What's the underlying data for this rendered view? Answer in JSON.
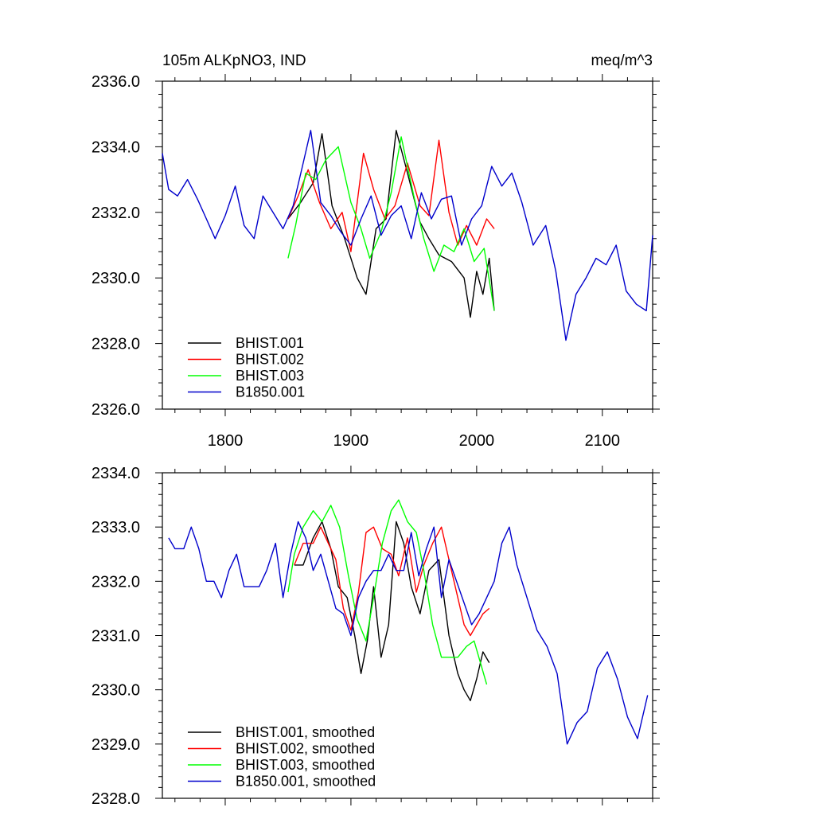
{
  "chart_data": [
    {
      "type": "line",
      "title": "105m ALKpNO3, IND",
      "units": "meq/m^3",
      "xlim": [
        1750,
        2140
      ],
      "ylim": [
        2326.0,
        2336.0
      ],
      "x_ticks": [
        1800,
        1900,
        2000,
        2100
      ],
      "x_tick_labels": [
        "1800",
        "1900",
        "2000",
        "2100"
      ],
      "y_ticks": [
        2326.0,
        2328.0,
        2330.0,
        2332.0,
        2334.0,
        2336.0
      ],
      "y_tick_labels": [
        "2326.0",
        "2328.0",
        "2330.0",
        "2332.0",
        "2334.0",
        "2336.0"
      ],
      "legend_position": "bottom-left",
      "series": [
        {
          "name": "BHIST.001",
          "color": "#000000",
          "x": [
            1850,
            1860,
            1870,
            1877,
            1885,
            1895,
            1905,
            1912,
            1920,
            1928,
            1936,
            1945,
            1955,
            1962,
            1970,
            1980,
            1990,
            1995,
            2000,
            2005,
            2010,
            2014
          ],
          "y": [
            2331.8,
            2332.3,
            2332.9,
            2334.4,
            2332.2,
            2331.2,
            2330.0,
            2329.5,
            2331.5,
            2331.8,
            2334.5,
            2333.2,
            2331.7,
            2331.2,
            2330.7,
            2330.5,
            2330.0,
            2328.8,
            2330.2,
            2329.5,
            2330.6,
            2329.0
          ]
        },
        {
          "name": "BHIST.002",
          "color": "#ff0000",
          "x": [
            1850,
            1858,
            1866,
            1875,
            1884,
            1893,
            1900,
            1910,
            1918,
            1927,
            1935,
            1945,
            1955,
            1962,
            1970,
            1978,
            1985,
            1992,
            2000,
            2008,
            2014
          ],
          "y": [
            2331.8,
            2332.5,
            2333.3,
            2332.3,
            2331.5,
            2332.0,
            2330.8,
            2333.8,
            2332.7,
            2331.8,
            2332.2,
            2333.5,
            2332.2,
            2331.9,
            2334.2,
            2332.0,
            2331.0,
            2331.6,
            2331.0,
            2331.8,
            2331.5
          ]
        },
        {
          "name": "BHIST.003",
          "color": "#00ff00",
          "x": [
            1850,
            1856,
            1864,
            1872,
            1880,
            1890,
            1900,
            1908,
            1915,
            1924,
            1932,
            1940,
            1950,
            1958,
            1966,
            1974,
            1982,
            1990,
            1998,
            2006,
            2014
          ],
          "y": [
            2330.6,
            2331.6,
            2333.2,
            2333.0,
            2333.6,
            2334.0,
            2332.3,
            2331.5,
            2330.6,
            2331.4,
            2332.6,
            2334.3,
            2332.5,
            2331.2,
            2330.2,
            2331.0,
            2330.8,
            2331.5,
            2330.5,
            2330.9,
            2329.0
          ]
        },
        {
          "name": "B1850.001",
          "color": "#0000cc",
          "x": [
            1750,
            1755,
            1762,
            1770,
            1778,
            1785,
            1792,
            1800,
            1808,
            1815,
            1823,
            1830,
            1838,
            1846,
            1854,
            1862,
            1868,
            1876,
            1884,
            1892,
            1900,
            1908,
            1916,
            1924,
            1932,
            1940,
            1948,
            1956,
            1964,
            1972,
            1980,
            1988,
            1996,
            2004,
            2012,
            2020,
            2028,
            2036,
            2045,
            2055,
            2063,
            2071,
            2079,
            2087,
            2095,
            2103,
            2111,
            2119,
            2127,
            2135,
            2140
          ],
          "y": [
            2333.8,
            2332.7,
            2332.5,
            2333.0,
            2332.4,
            2331.8,
            2331.2,
            2331.9,
            2332.8,
            2331.6,
            2331.2,
            2332.5,
            2332.0,
            2331.5,
            2332.2,
            2333.5,
            2334.5,
            2332.3,
            2331.9,
            2331.4,
            2331.0,
            2331.8,
            2332.5,
            2331.3,
            2331.9,
            2332.2,
            2331.2,
            2332.6,
            2331.8,
            2332.4,
            2332.5,
            2331.0,
            2331.8,
            2332.2,
            2333.4,
            2332.8,
            2333.2,
            2332.3,
            2331.0,
            2331.6,
            2330.2,
            2328.1,
            2329.5,
            2330.0,
            2330.6,
            2330.4,
            2331.0,
            2329.6,
            2329.2,
            2329.0,
            2331.3
          ]
        }
      ]
    },
    {
      "type": "line",
      "xlim": [
        1750,
        2140
      ],
      "ylim": [
        2328.0,
        2334.0
      ],
      "y_ticks": [
        2328.0,
        2329.0,
        2330.0,
        2331.0,
        2332.0,
        2333.0,
        2334.0
      ],
      "y_tick_labels": [
        "2328.0",
        "2329.0",
        "2330.0",
        "2331.0",
        "2332.0",
        "2333.0",
        "2334.0"
      ],
      "legend_position": "bottom-left",
      "series": [
        {
          "name": "BHIST.001, smoothed",
          "color": "#000000",
          "x": [
            1855,
            1862,
            1870,
            1877,
            1884,
            1890,
            1897,
            1903,
            1908,
            1913,
            1918,
            1924,
            1930,
            1936,
            1942,
            1948,
            1955,
            1962,
            1970,
            1978,
            1985,
            1990,
            1995,
            2000,
            2005,
            2010
          ],
          "y": [
            2332.3,
            2332.3,
            2332.8,
            2333.1,
            2332.6,
            2331.9,
            2331.7,
            2331.0,
            2330.3,
            2330.9,
            2331.9,
            2330.6,
            2331.2,
            2333.1,
            2332.7,
            2331.9,
            2331.4,
            2332.2,
            2332.4,
            2331.0,
            2330.3,
            2330.0,
            2329.8,
            2330.2,
            2330.7,
            2330.5
          ]
        },
        {
          "name": "BHIST.002, smoothed",
          "color": "#ff0000",
          "x": [
            1855,
            1862,
            1870,
            1876,
            1882,
            1888,
            1894,
            1900,
            1906,
            1912,
            1918,
            1925,
            1932,
            1938,
            1945,
            1952,
            1958,
            1965,
            1972,
            1978,
            1985,
            1990,
            1995,
            2000,
            2005,
            2010
          ],
          "y": [
            2332.3,
            2332.7,
            2332.7,
            2333.0,
            2332.7,
            2332.4,
            2331.5,
            2331.1,
            2331.8,
            2332.9,
            2333.0,
            2332.6,
            2332.5,
            2332.1,
            2332.8,
            2331.8,
            2332.3,
            2332.7,
            2333.0,
            2332.4,
            2331.7,
            2331.2,
            2331.0,
            2331.2,
            2331.4,
            2331.5
          ]
        },
        {
          "name": "BHIST.003, smoothed",
          "color": "#00ff00",
          "x": [
            1850,
            1855,
            1862,
            1870,
            1877,
            1884,
            1891,
            1898,
            1905,
            1912,
            1918,
            1925,
            1932,
            1938,
            1945,
            1952,
            1958,
            1965,
            1972,
            1978,
            1985,
            1992,
            1998,
            2003,
            2008
          ],
          "y": [
            2331.8,
            2332.5,
            2333.0,
            2333.3,
            2333.1,
            2333.4,
            2333.0,
            2332.1,
            2331.3,
            2330.9,
            2331.7,
            2332.7,
            2333.3,
            2333.5,
            2333.1,
            2332.9,
            2332.2,
            2331.2,
            2330.6,
            2330.6,
            2330.6,
            2330.8,
            2330.9,
            2330.5,
            2330.1
          ]
        },
        {
          "name": "B1850.001, smoothed",
          "color": "#0000cc",
          "x": [
            1755,
            1760,
            1767,
            1773,
            1779,
            1785,
            1791,
            1797,
            1803,
            1809,
            1815,
            1821,
            1827,
            1833,
            1840,
            1846,
            1852,
            1858,
            1864,
            1870,
            1876,
            1882,
            1888,
            1894,
            1900,
            1906,
            1912,
            1918,
            1924,
            1930,
            1936,
            1942,
            1948,
            1954,
            1960,
            1966,
            1972,
            1978,
            1984,
            1990,
            1996,
            2002,
            2008,
            2014,
            2020,
            2026,
            2032,
            2040,
            2048,
            2056,
            2064,
            2072,
            2080,
            2088,
            2096,
            2104,
            2112,
            2120,
            2128,
            2136
          ],
          "y": [
            2332.8,
            2332.6,
            2332.6,
            2333.0,
            2332.6,
            2332.0,
            2332.0,
            2331.7,
            2332.2,
            2332.5,
            2331.9,
            2331.9,
            2331.9,
            2332.2,
            2332.7,
            2331.7,
            2332.5,
            2333.1,
            2332.8,
            2332.2,
            2332.5,
            2332.0,
            2331.5,
            2331.4,
            2331.0,
            2331.7,
            2332.0,
            2332.2,
            2332.2,
            2332.5,
            2332.2,
            2332.2,
            2332.9,
            2332.1,
            2332.6,
            2333.0,
            2331.7,
            2332.4,
            2332.0,
            2331.6,
            2331.2,
            2331.4,
            2331.7,
            2332.0,
            2332.7,
            2333.0,
            2332.3,
            2331.7,
            2331.1,
            2330.8,
            2330.3,
            2329.0,
            2329.4,
            2329.6,
            2330.4,
            2330.7,
            2330.2,
            2329.5,
            2329.1,
            2329.9
          ]
        }
      ]
    }
  ]
}
